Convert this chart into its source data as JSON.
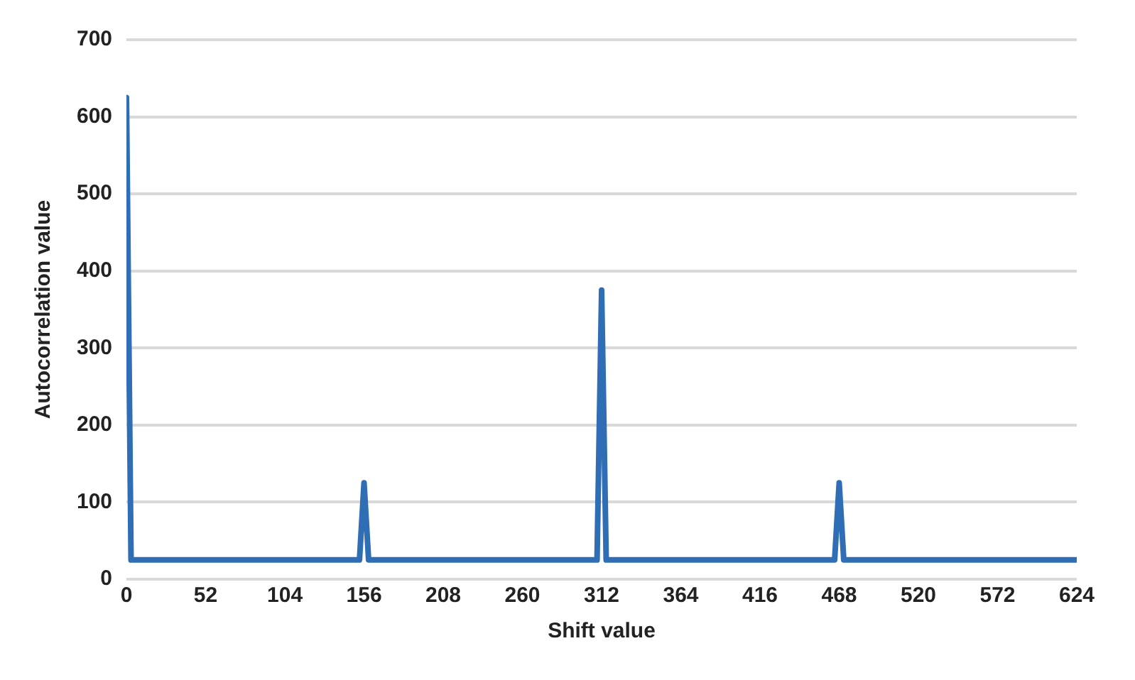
{
  "chart_data": {
    "type": "line",
    "xlabel": "Shift value",
    "ylabel": "Autocorrelation value",
    "series": [
      {
        "color": "#2f6eb5",
        "x": [
          0,
          3,
          153,
          156,
          159,
          309,
          312,
          315,
          465,
          468,
          471,
          624
        ],
        "values": [
          625,
          25,
          25,
          125,
          25,
          25,
          375,
          25,
          25,
          125,
          25,
          25
        ]
      }
    ],
    "xlim": [
      0,
      624
    ],
    "xticks": [
      0,
      52,
      104,
      156,
      208,
      260,
      312,
      364,
      416,
      468,
      520,
      572,
      624
    ],
    "ylim": [
      0,
      700
    ],
    "yticks": [
      0,
      100,
      200,
      300,
      400,
      500,
      600,
      700
    ],
    "grid": "y",
    "marker": "none",
    "line_style": "solid",
    "legend": false
  }
}
